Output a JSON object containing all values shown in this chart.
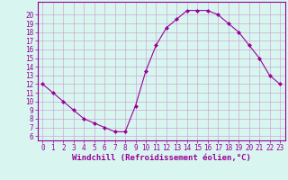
{
  "x": [
    0,
    1,
    2,
    3,
    4,
    5,
    6,
    7,
    8,
    9,
    10,
    11,
    12,
    13,
    14,
    15,
    16,
    17,
    18,
    19,
    20,
    21,
    22,
    23
  ],
  "y": [
    12,
    11,
    10,
    9,
    8,
    7.5,
    7,
    6.5,
    6.5,
    9.5,
    13.5,
    16.5,
    18.5,
    19.5,
    20.5,
    20.5,
    20.5,
    20,
    19,
    18,
    16.5,
    15,
    13,
    12
  ],
  "line_color": "#990099",
  "marker": "D",
  "marker_size": 2.0,
  "bg_color": "#d8f5f0",
  "grid_color": "#cc99cc",
  "xlabel": "Windchill (Refroidissement éolien,°C)",
  "xlabel_color": "#990099",
  "xlim": [
    -0.5,
    23.5
  ],
  "ylim": [
    5.5,
    21.5
  ],
  "yticks": [
    6,
    7,
    8,
    9,
    10,
    11,
    12,
    13,
    14,
    15,
    16,
    17,
    18,
    19,
    20
  ],
  "xticks": [
    0,
    1,
    2,
    3,
    4,
    5,
    6,
    7,
    8,
    9,
    10,
    11,
    12,
    13,
    14,
    15,
    16,
    17,
    18,
    19,
    20,
    21,
    22,
    23
  ],
  "tick_color": "#990099",
  "tick_fontsize": 5.5,
  "xlabel_fontsize": 6.5,
  "spine_color": "#990099"
}
